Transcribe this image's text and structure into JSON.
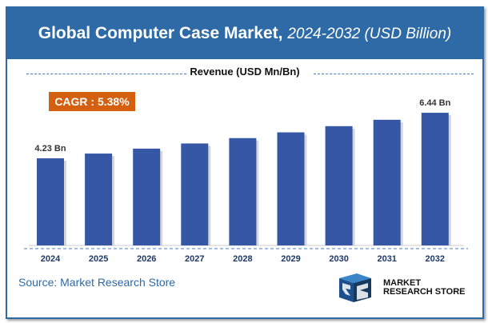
{
  "header": {
    "title": "Global Computer Case Market,",
    "subtitle": "2024-2032 (USD Billion)"
  },
  "revenue_label": "Revenue (USD Mn/Bn)",
  "cagr": "CAGR : 5.38%",
  "source": "Source: Market Research Store",
  "logo": {
    "line1": "MARKET",
    "line2": "RESEARCH STORE"
  },
  "colors": {
    "header": "#2e6aa6",
    "bar": "#3557a6",
    "cagr": "#d35f0f",
    "year": "#1f3864"
  },
  "chart_data": {
    "type": "bar",
    "title": "Global Computer Case Market, 2024-2032 (USD Billion)",
    "ylabel": "Revenue (USD Mn/Bn)",
    "categories": [
      "2024",
      "2025",
      "2026",
      "2027",
      "2028",
      "2029",
      "2030",
      "2031",
      "2032"
    ],
    "values": [
      4.23,
      4.46,
      4.7,
      4.95,
      5.21,
      5.49,
      5.79,
      6.1,
      6.44
    ],
    "data_labels": {
      "0": "4.23 Bn",
      "8": "6.44 Bn"
    },
    "ylim": [
      0,
      7
    ],
    "grid": false
  }
}
